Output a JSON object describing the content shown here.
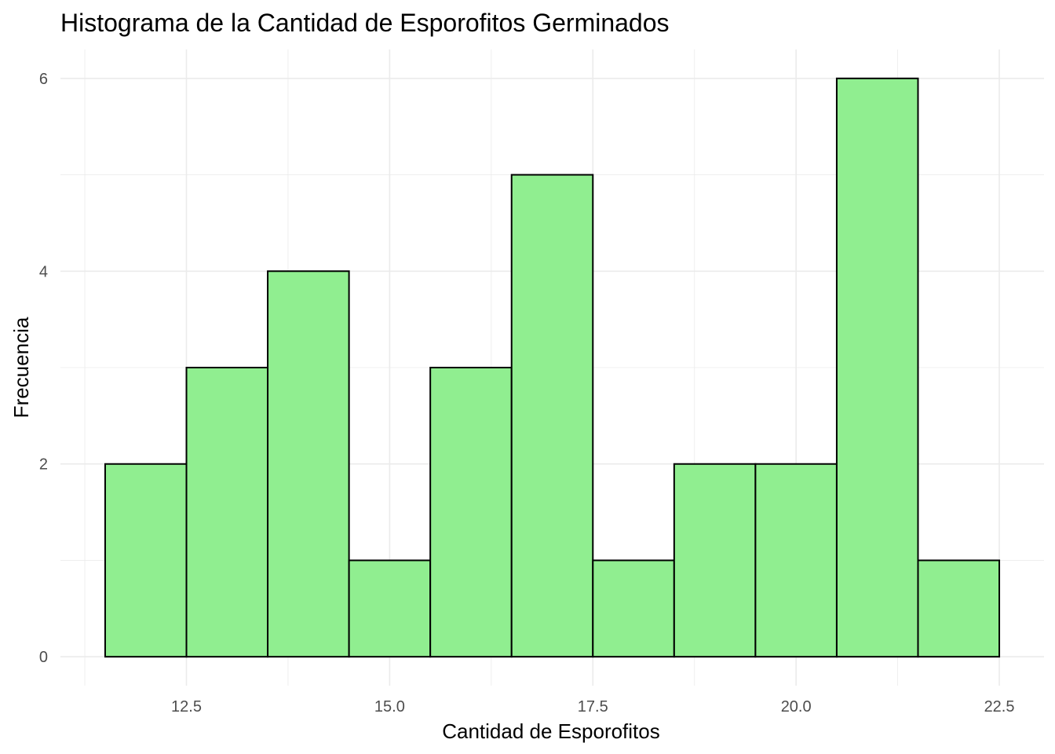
{
  "chart_data": {
    "type": "bar",
    "subtype": "histogram",
    "title": "Histograma de la Cantidad de Esporofitos Germinados",
    "xlabel": "Cantidad de Esporofitos",
    "ylabel": "Frecuencia",
    "bins": [
      {
        "x0": 11.5,
        "x1": 12.5,
        "count": 2
      },
      {
        "x0": 12.5,
        "x1": 13.5,
        "count": 3
      },
      {
        "x0": 13.5,
        "x1": 14.5,
        "count": 4
      },
      {
        "x0": 14.5,
        "x1": 15.5,
        "count": 1
      },
      {
        "x0": 15.5,
        "x1": 16.5,
        "count": 3
      },
      {
        "x0": 16.5,
        "x1": 17.5,
        "count": 5
      },
      {
        "x0": 17.5,
        "x1": 18.5,
        "count": 1
      },
      {
        "x0": 18.5,
        "x1": 19.5,
        "count": 2
      },
      {
        "x0": 19.5,
        "x1": 20.5,
        "count": 2
      },
      {
        "x0": 20.5,
        "x1": 21.5,
        "count": 6
      },
      {
        "x0": 21.5,
        "x1": 22.5,
        "count": 1
      }
    ],
    "xlim": [
      10.95,
      23.05
    ],
    "ylim": [
      -0.3,
      6.3
    ],
    "x_ticks": [
      12.5,
      15.0,
      17.5,
      20.0,
      22.5
    ],
    "x_tick_labels": [
      "12.5",
      "15.0",
      "17.5",
      "20.0",
      "22.5"
    ],
    "x_minor_ticks": [
      11.25,
      13.75,
      16.25,
      18.75,
      21.25
    ],
    "y_ticks": [
      0,
      2,
      4,
      6
    ],
    "y_tick_labels": [
      "0",
      "2",
      "4",
      "6"
    ],
    "y_minor_ticks": [
      1,
      3,
      5
    ],
    "grid": true,
    "legend": "none",
    "colors": {
      "bar_fill": "#90EE90",
      "bar_border": "#000000",
      "grid": "#ebebeb",
      "tick_text": "#4d4d4d",
      "title_text": "#000000",
      "background": "#ffffff"
    }
  }
}
